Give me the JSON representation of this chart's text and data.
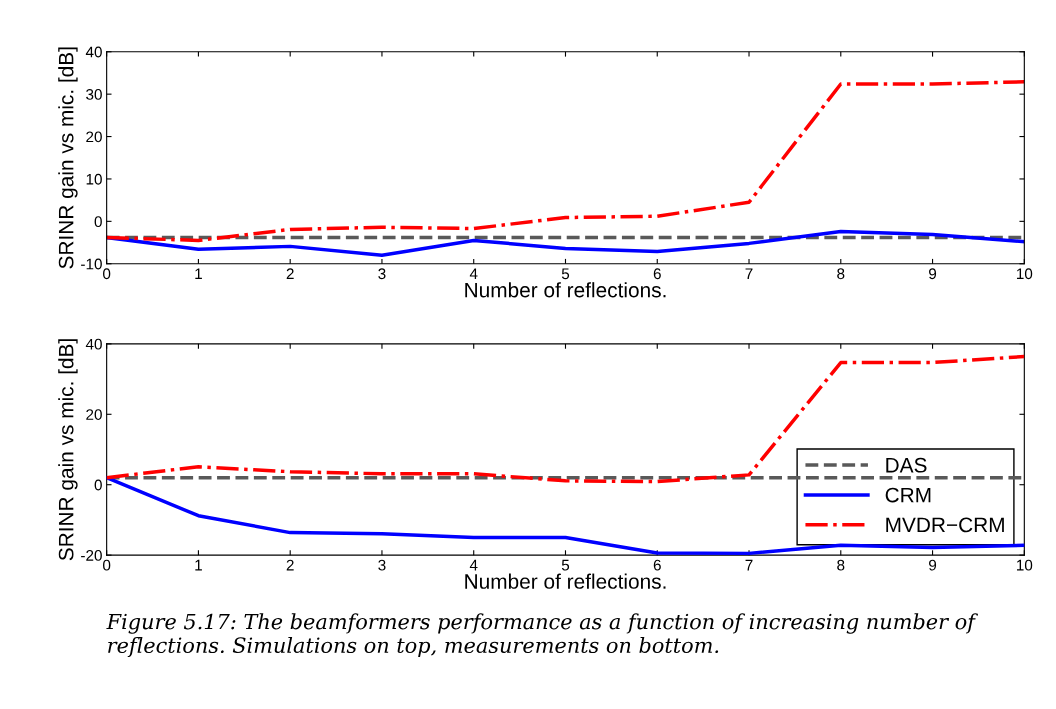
{
  "chart_data": [
    {
      "type": "line",
      "ylabel": "SRINR gain vs mic. [dB]",
      "xlabel": "Number of reflections.",
      "x": [
        0,
        1,
        2,
        3,
        4,
        5,
        6,
        7,
        8,
        9,
        10
      ],
      "xlim": [
        0,
        10
      ],
      "xticks": [
        0,
        1,
        2,
        3,
        4,
        5,
        6,
        7,
        8,
        9,
        10
      ],
      "ylim": [
        -10,
        40
      ],
      "yticks": [
        -10,
        0,
        10,
        20,
        30,
        40
      ],
      "grid": false,
      "legend": false,
      "series": [
        {
          "color": "#595959",
          "line_style": "dashed",
          "values": [
            -3.8,
            -3.8,
            -3.8,
            -3.8,
            -3.8,
            -3.8,
            -3.8,
            -3.8,
            -3.8,
            -3.8,
            -3.8
          ]
        },
        {
          "color": "#0000ff",
          "line_style": "solid",
          "values": [
            -3.8,
            -6.6,
            -5.9,
            -8,
            -4.5,
            -6.4,
            -7.1,
            -5.2,
            -2.4,
            -3.1,
            -4.8
          ]
        },
        {
          "color": "#ff0000",
          "line_style": "dashdot",
          "values": [
            -3.8,
            -4.5,
            -1.9,
            -1.4,
            -1.7,
            0.9,
            1.2,
            4.5,
            32.4,
            32.4,
            32.9
          ]
        }
      ]
    },
    {
      "type": "line",
      "ylabel": "SRINR gain vs mic. [dB]",
      "xlabel": "Number of reflections.",
      "x": [
        0,
        1,
        2,
        3,
        4,
        5,
        6,
        7,
        8,
        9,
        10
      ],
      "xlim": [
        0,
        10
      ],
      "xticks": [
        0,
        1,
        2,
        3,
        4,
        5,
        6,
        7,
        8,
        9,
        10
      ],
      "ylim": [
        -20,
        40
      ],
      "yticks": [
        -20,
        0,
        20,
        40
      ],
      "grid": false,
      "legend": "bottom right",
      "annotations": [
        "Figure 5.17: The beamformers performance as a function of increasing number of reflections. Simulations on top, measurements on bottom."
      ],
      "series": [
        {
          "name": "DAS",
          "color": "#595959",
          "line_style": "dashed",
          "values": [
            2,
            2,
            2,
            2,
            2,
            2,
            2,
            2,
            2,
            2,
            2
          ]
        },
        {
          "name": "CRM",
          "color": "#0000ff",
          "line_style": "solid",
          "values": [
            2,
            -8.8,
            -13.6,
            -13.9,
            -15,
            -15,
            -19.4,
            -19.5,
            -17.2,
            -17.8,
            -17.2
          ]
        },
        {
          "name": "MVDR−CRM",
          "color": "#ff0000",
          "line_style": "dashdot",
          "values": [
            2,
            5.1,
            3.7,
            3.1,
            3.1,
            1.1,
            0.9,
            2.8,
            34.7,
            34.7,
            36.4
          ]
        }
      ]
    }
  ]
}
